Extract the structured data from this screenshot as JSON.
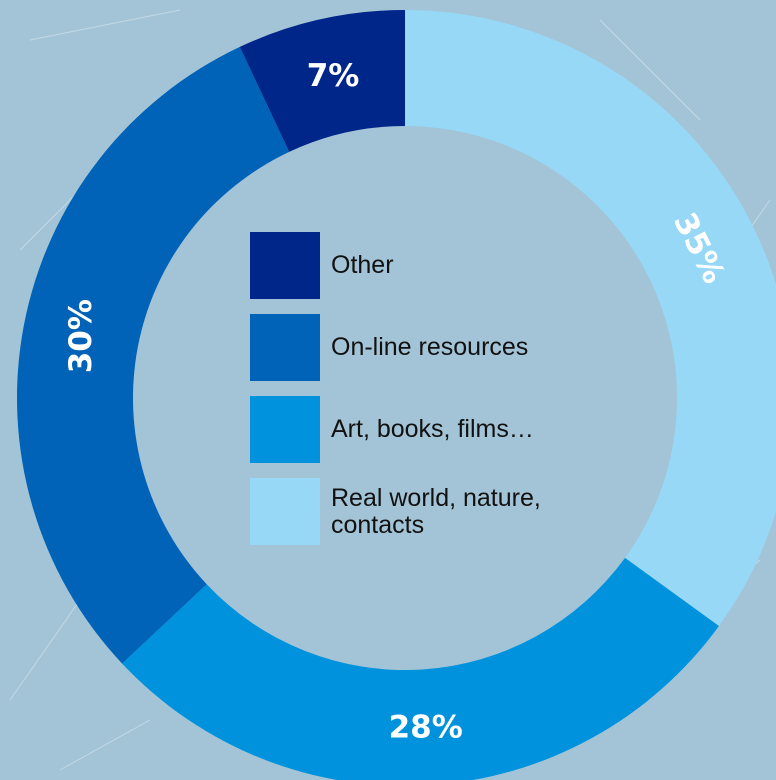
{
  "colors": {
    "background": "#a3c4d6",
    "other": "#00268a",
    "online": "#0063b7",
    "art": "#0092dc",
    "real": "#96d8f6",
    "label_text": "#ffffff"
  },
  "chart_data": {
    "type": "pie",
    "donut": true,
    "start": "top",
    "direction": "clockwise",
    "legend_placement": "center",
    "categories": [
      "Real world, nature, contacts",
      "Art, books, films…",
      "On-line resources",
      "Other"
    ],
    "values": [
      35,
      28,
      30,
      7
    ],
    "value_labels": [
      "35%",
      "28%",
      "30%",
      "7%"
    ],
    "colors": [
      "#96d8f6",
      "#0092dc",
      "#0063b7",
      "#00268a"
    ]
  },
  "legend": [
    {
      "label": "Other",
      "color": "#00268a"
    },
    {
      "label": "On-line resources",
      "color": "#0063b7"
    },
    {
      "label": "Art, books, films…",
      "color": "#0092dc"
    },
    {
      "label": "Real world, nature,",
      "label2": "contacts",
      "color": "#96d8f6"
    }
  ]
}
